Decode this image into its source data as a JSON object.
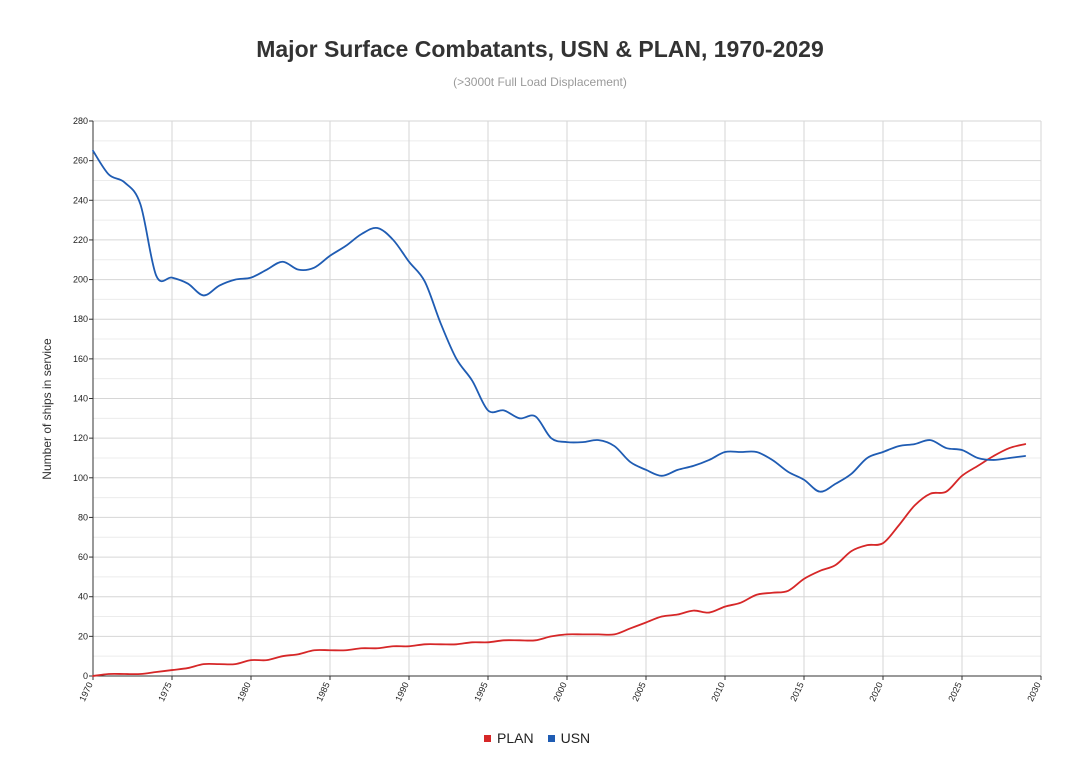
{
  "chart_data": {
    "type": "line",
    "title": "Major Surface Combatants, USN & PLAN, 1970-2029",
    "subtitle": "(>3000t Full Load Displacement)",
    "xlabel": "",
    "ylabel": "Number of ships in service",
    "xlim": [
      1970,
      2030
    ],
    "ylim": [
      0,
      280
    ],
    "x_ticks": [
      1970,
      1975,
      1980,
      1985,
      1990,
      1995,
      2000,
      2005,
      2010,
      2015,
      2020,
      2025,
      2030
    ],
    "y_ticks": [
      0,
      20,
      40,
      60,
      80,
      100,
      120,
      140,
      160,
      180,
      200,
      220,
      240,
      260,
      280
    ],
    "grid": true,
    "legend_position": "bottom-center",
    "series": [
      {
        "name": "PLAN",
        "color": "#d62728",
        "points": [
          [
            1970,
            0
          ],
          [
            1971,
            1
          ],
          [
            1972,
            1
          ],
          [
            1973,
            1
          ],
          [
            1974,
            2
          ],
          [
            1975,
            3
          ],
          [
            1976,
            4
          ],
          [
            1977,
            6
          ],
          [
            1978,
            6
          ],
          [
            1979,
            6
          ],
          [
            1980,
            8
          ],
          [
            1981,
            8
          ],
          [
            1982,
            10
          ],
          [
            1983,
            11
          ],
          [
            1984,
            13
          ],
          [
            1985,
            13
          ],
          [
            1986,
            13
          ],
          [
            1987,
            14
          ],
          [
            1988,
            14
          ],
          [
            1989,
            15
          ],
          [
            1990,
            15
          ],
          [
            1991,
            16
          ],
          [
            1992,
            16
          ],
          [
            1993,
            16
          ],
          [
            1994,
            17
          ],
          [
            1995,
            17
          ],
          [
            1996,
            18
          ],
          [
            1997,
            18
          ],
          [
            1998,
            18
          ],
          [
            1999,
            20
          ],
          [
            2000,
            21
          ],
          [
            2001,
            21
          ],
          [
            2002,
            21
          ],
          [
            2003,
            21
          ],
          [
            2004,
            24
          ],
          [
            2005,
            27
          ],
          [
            2006,
            30
          ],
          [
            2007,
            31
          ],
          [
            2008,
            33
          ],
          [
            2009,
            32
          ],
          [
            2010,
            35
          ],
          [
            2011,
            37
          ],
          [
            2012,
            41
          ],
          [
            2013,
            42
          ],
          [
            2014,
            43
          ],
          [
            2015,
            49
          ],
          [
            2016,
            53
          ],
          [
            2017,
            56
          ],
          [
            2018,
            63
          ],
          [
            2019,
            66
          ],
          [
            2020,
            67
          ],
          [
            2021,
            76
          ],
          [
            2022,
            86
          ],
          [
            2023,
            92
          ],
          [
            2024,
            93
          ],
          [
            2025,
            101
          ],
          [
            2026,
            106
          ],
          [
            2027,
            111
          ],
          [
            2028,
            115
          ],
          [
            2029,
            117
          ]
        ]
      },
      {
        "name": "USN",
        "color": "#1f5cb3",
        "points": [
          [
            1970,
            265
          ],
          [
            1971,
            253
          ],
          [
            1972,
            249
          ],
          [
            1973,
            238
          ],
          [
            1974,
            202
          ],
          [
            1975,
            201
          ],
          [
            1976,
            198
          ],
          [
            1977,
            192
          ],
          [
            1978,
            197
          ],
          [
            1979,
            200
          ],
          [
            1980,
            201
          ],
          [
            1981,
            205
          ],
          [
            1982,
            209
          ],
          [
            1983,
            205
          ],
          [
            1984,
            206
          ],
          [
            1985,
            212
          ],
          [
            1986,
            217
          ],
          [
            1987,
            223
          ],
          [
            1988,
            226
          ],
          [
            1989,
            220
          ],
          [
            1990,
            209
          ],
          [
            1991,
            199
          ],
          [
            1992,
            178
          ],
          [
            1993,
            160
          ],
          [
            1994,
            149
          ],
          [
            1995,
            134
          ],
          [
            1996,
            134
          ],
          [
            1997,
            130
          ],
          [
            1998,
            131
          ],
          [
            1999,
            120
          ],
          [
            2000,
            118
          ],
          [
            2001,
            118
          ],
          [
            2002,
            119
          ],
          [
            2003,
            116
          ],
          [
            2004,
            108
          ],
          [
            2005,
            104
          ],
          [
            2006,
            101
          ],
          [
            2007,
            104
          ],
          [
            2008,
            106
          ],
          [
            2009,
            109
          ],
          [
            2010,
            113
          ],
          [
            2011,
            113
          ],
          [
            2012,
            113
          ],
          [
            2013,
            109
          ],
          [
            2014,
            103
          ],
          [
            2015,
            99
          ],
          [
            2016,
            93
          ],
          [
            2017,
            97
          ],
          [
            2018,
            102
          ],
          [
            2019,
            110
          ],
          [
            2020,
            113
          ],
          [
            2021,
            116
          ],
          [
            2022,
            117
          ],
          [
            2023,
            119
          ],
          [
            2024,
            115
          ],
          [
            2025,
            114
          ],
          [
            2026,
            110
          ],
          [
            2027,
            109
          ],
          [
            2028,
            110
          ],
          [
            2029,
            111
          ]
        ]
      }
    ]
  }
}
